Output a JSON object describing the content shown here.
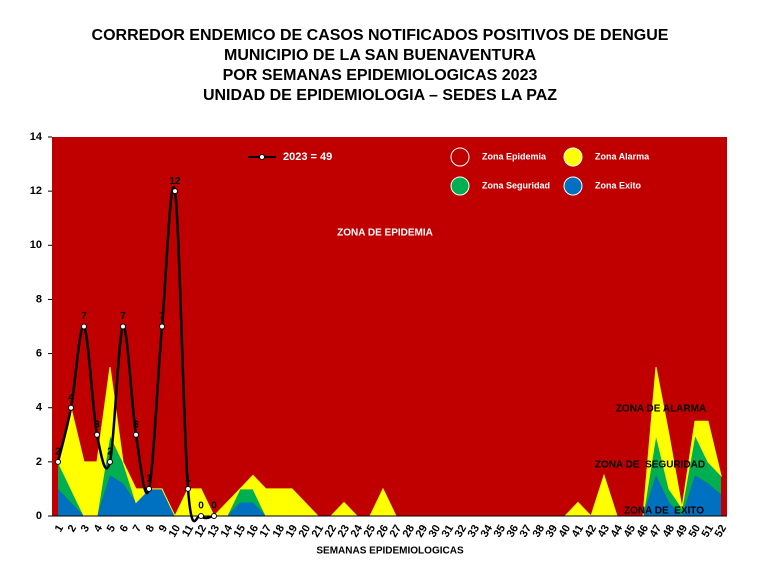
{
  "chart_data": {
    "type": "area",
    "title": [
      "CORREDOR ENDEMICO DE CASOS NOTIFICADOS POSITIVOS DE DENGUE",
      "MUNICIPIO DE LA SAN BUENAVENTURA",
      "POR SEMANAS EPIDEMIOLOGICAS 2023",
      "UNIDAD DE EPIDEMIOLOGIA – SEDES LA PAZ"
    ],
    "x_label": "SEMANAS EPIDEMIOLOGICAS",
    "categories": [
      "1",
      "2",
      "3",
      "4",
      "5",
      "6",
      "7",
      "8",
      "9",
      "10",
      "11",
      "12",
      "13",
      "14",
      "15",
      "16",
      "17",
      "18",
      "19",
      "20",
      "21",
      "22",
      "23",
      "24",
      "25",
      "26",
      "27",
      "28",
      "29",
      "30",
      "31",
      "32",
      "33",
      "34",
      "35",
      "36",
      "37",
      "38",
      "39",
      "40",
      "41",
      "42",
      "43",
      "44",
      "45",
      "46",
      "47",
      "48",
      "49",
      "50",
      "51",
      "52"
    ],
    "epidemic_zone": {
      "name": "Zona Epidemia",
      "color": "#c00000"
    },
    "series": [
      {
        "name": "Zona Exito",
        "color": "#0070c0",
        "stacked": true,
        "values": [
          1,
          0.5,
          0,
          0,
          1.5,
          1.2,
          0.5,
          1,
          1,
          0,
          0,
          0,
          0,
          0,
          0.5,
          0.5,
          0,
          0,
          0,
          0,
          0,
          0,
          0,
          0,
          0,
          0,
          0,
          0,
          0,
          0,
          0,
          0,
          0,
          0,
          0,
          0,
          0,
          0,
          0,
          0,
          0,
          0,
          0,
          0,
          0,
          0,
          1.5,
          0.5,
          0,
          1.5,
          1.2,
          0.8
        ]
      },
      {
        "name": "Zona Seguridad",
        "color": "#00b050",
        "stacked": true,
        "values": [
          1,
          0.5,
          0,
          0,
          1.5,
          0.8,
          0,
          0,
          0,
          0,
          0,
          0,
          0,
          0,
          0.5,
          0.5,
          0,
          0,
          0,
          0,
          0,
          0,
          0,
          0,
          0,
          0,
          0,
          0,
          0,
          0,
          0,
          0,
          0,
          0,
          0,
          0,
          0,
          0,
          0,
          0,
          0,
          0,
          0,
          0,
          0,
          0,
          1.5,
          0.5,
          0.3,
          1.5,
          0.8,
          0.7
        ]
      },
      {
        "name": "Zona Alarma",
        "color": "#ffff00",
        "stacked": true,
        "values": [
          0,
          3,
          2,
          2,
          2.5,
          0,
          0.5,
          0,
          0,
          0,
          1,
          1,
          0,
          0.5,
          0,
          0.5,
          1,
          1,
          1,
          0.5,
          0,
          0,
          0.5,
          0,
          0,
          1,
          0,
          0,
          0,
          0,
          0,
          0,
          0,
          0,
          0,
          0,
          0,
          0,
          0,
          0,
          0.5,
          0,
          1.5,
          0,
          0,
          0,
          2.5,
          2,
          0,
          0.5,
          1.5,
          0
        ]
      },
      {
        "name": "2023 = 49",
        "color": "#000000",
        "stacked": false,
        "values": [
          2,
          4,
          7,
          3,
          2,
          7,
          3,
          1,
          7,
          12,
          1,
          0,
          0,
          null,
          null,
          null,
          null,
          null,
          null,
          null,
          null,
          null,
          null,
          null,
          null,
          null,
          null,
          null,
          null,
          null,
          null,
          null,
          null,
          null,
          null,
          null,
          null,
          null,
          null,
          null,
          null,
          null,
          null,
          null,
          null,
          null,
          null,
          null,
          null,
          null,
          null,
          null
        ]
      }
    ],
    "annotations": [
      "ZONA DE EPIDEMIA",
      "ZONA DE ALARMA",
      "ZONA DE  SEGURIDAD",
      "ZONA DE  EXITO"
    ],
    "ylim": [
      0,
      14
    ],
    "yticks": [
      0,
      2,
      4,
      6,
      8,
      10,
      12,
      14
    ]
  }
}
